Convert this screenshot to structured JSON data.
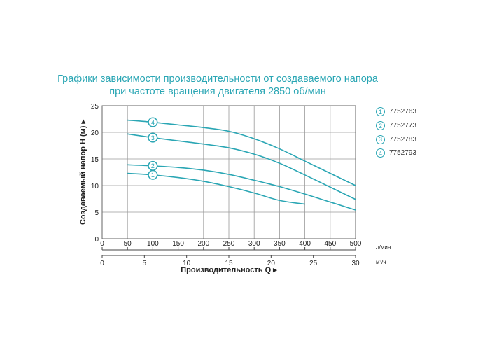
{
  "title_lines": [
    "Графики зависимости производительности от создаваемого напора",
    "при частоте вращения двигателя 2850 об/мин"
  ],
  "colors": {
    "accent": "#2aa6b4",
    "grid": "#9a9a9a",
    "text": "#222222"
  },
  "chart_data": {
    "type": "line",
    "title": "Графики зависимости производительности от создаваемого напора при частоте вращения двигателя 2850 об/мин",
    "ylabel": "Создаваемый напор H (м) ▸",
    "xlabel": "Производительность Q ▸",
    "x_unit": "л/мин",
    "x2_unit": "м³/ч",
    "xlim": [
      0,
      500
    ],
    "ylim": [
      0,
      25
    ],
    "xticks": [
      "0",
      "50",
      "100",
      "150",
      "200",
      "250",
      "300",
      "350",
      "400",
      "450",
      "500"
    ],
    "x2ticks": [
      "0",
      "5",
      "10",
      "15",
      "20",
      "25",
      "30"
    ],
    "x2_values": [
      0,
      5,
      10,
      15,
      20,
      25,
      30
    ],
    "yticks": [
      "0",
      "5",
      "10",
      "15",
      "20",
      "25"
    ],
    "grid": true,
    "series": [
      {
        "name": "7752763",
        "label": "1",
        "x": [
          50,
          100,
          150,
          200,
          250,
          300,
          350,
          400
        ],
        "y": [
          12.3,
          12.0,
          11.5,
          10.8,
          9.8,
          8.6,
          7.2,
          6.5
        ]
      },
      {
        "name": "7752773",
        "label": "2",
        "x": [
          50,
          100,
          150,
          200,
          250,
          300,
          350,
          400,
          450,
          500
        ],
        "y": [
          13.9,
          13.7,
          13.4,
          12.9,
          12.1,
          11.0,
          9.8,
          8.4,
          6.9,
          5.4
        ]
      },
      {
        "name": "7752783",
        "label": "3",
        "x": [
          50,
          100,
          150,
          200,
          250,
          300,
          350,
          400,
          450,
          500
        ],
        "y": [
          19.7,
          19.0,
          18.4,
          17.8,
          17.1,
          15.9,
          14.2,
          12.0,
          9.7,
          7.4
        ]
      },
      {
        "name": "7752793",
        "label": "4",
        "x": [
          50,
          100,
          150,
          200,
          250,
          300,
          350,
          400,
          450,
          500
        ],
        "y": [
          22.3,
          21.9,
          21.4,
          20.9,
          20.2,
          18.8,
          16.9,
          14.6,
          12.3,
          10.0
        ]
      }
    ]
  }
}
